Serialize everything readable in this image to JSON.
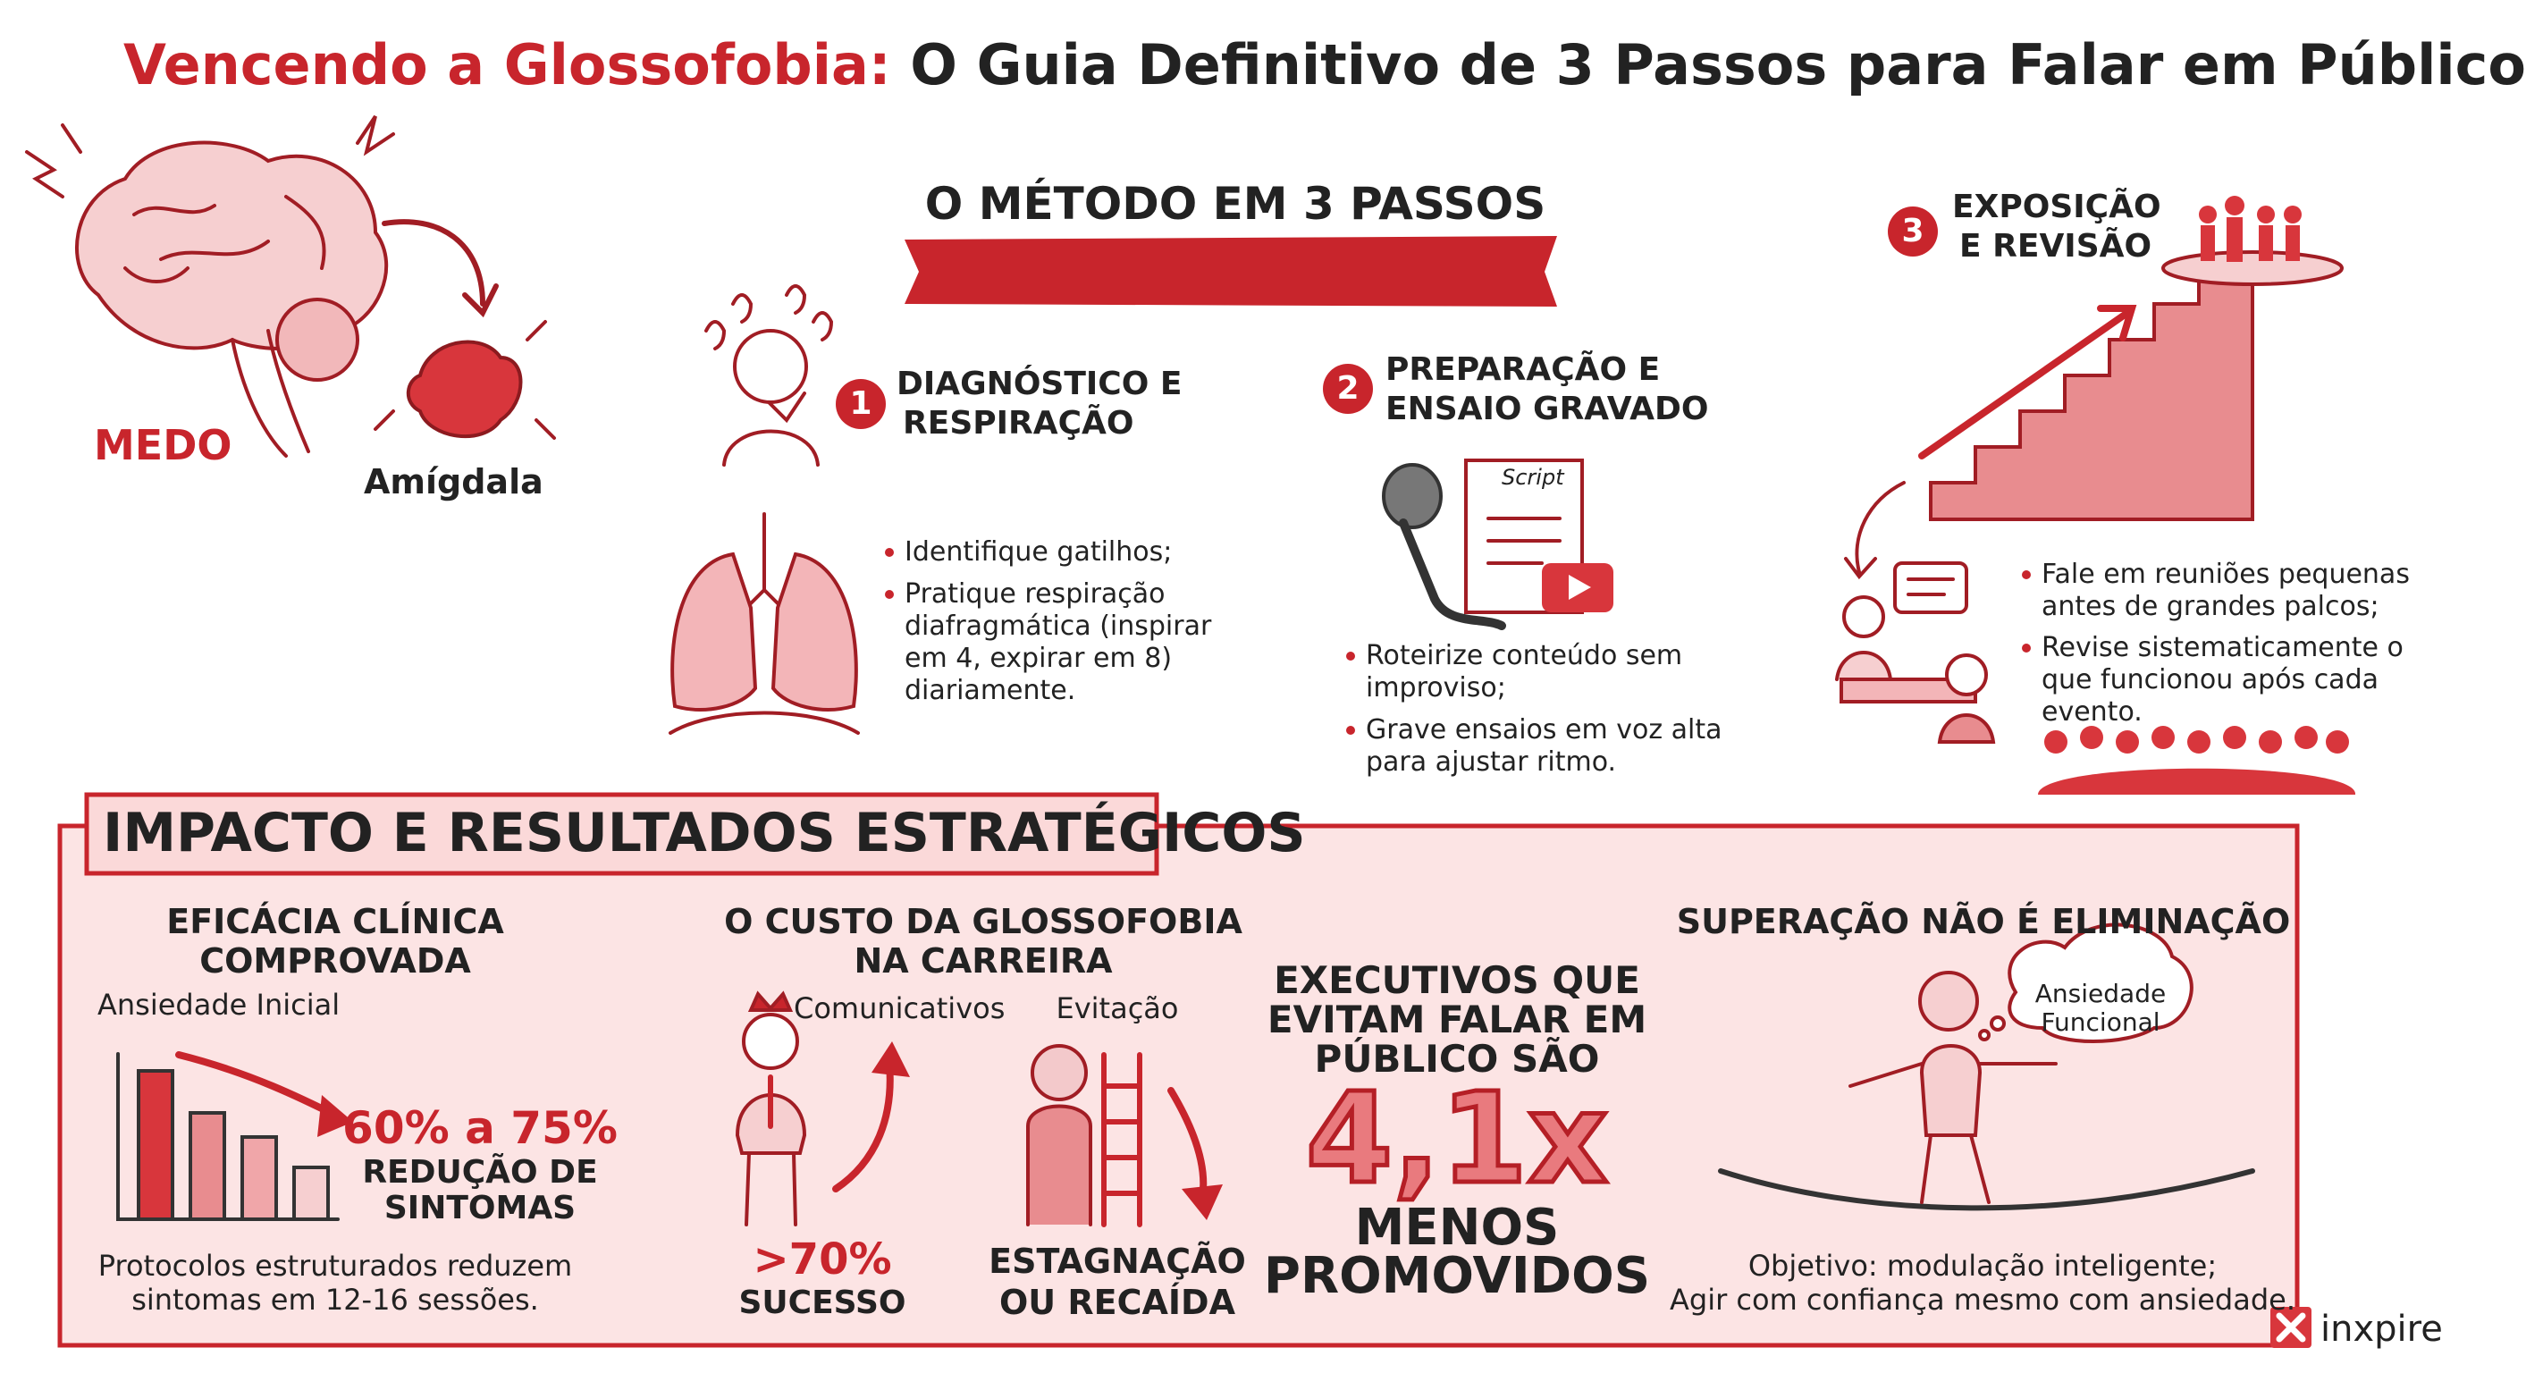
{
  "header": {
    "title_highlight": "Vencendo a Glossofobia:",
    "title_rest": "O Guia Definitivo de 3 Passos para Falar em Público"
  },
  "intro": {
    "fear_label": "MEDO",
    "amygdala_label": "Amígdala"
  },
  "method": {
    "title": "O MÉTODO EM 3 PASSOS",
    "steps": [
      {
        "number": "1",
        "title_lines": [
          "DIAGNÓSTICO E",
          "RESPIRAÇÃO"
        ],
        "bullets": [
          "Identifique gatilhos;",
          "Pratique respiração diafragmática (inspirar em 4, expirar em 8) diariamente."
        ]
      },
      {
        "number": "2",
        "title_lines": [
          "PREPARAÇÃO E",
          "ENSAIO GRAVADO"
        ],
        "script_label": "Script",
        "bullets": [
          "Roteirize conteúdo sem improviso;",
          "Grave ensaios em voz alta para ajustar ritmo."
        ]
      },
      {
        "number": "3",
        "title_lines": [
          "EXPOSIÇÃO",
          "E REVISÃO"
        ],
        "bullets": [
          "Fale em reuniões pequenas antes de grandes palcos;",
          "Revise sistematicamente o que funcionou após cada evento."
        ]
      }
    ]
  },
  "impact": {
    "title": "IMPACTO E RESULTADOS ESTRATÉGICOS",
    "clinical": {
      "title_lines": [
        "EFICÁCIA CLÍNICA",
        "COMPROVADA"
      ],
      "chart_label": "Ansiedade Inicial",
      "stat": "60% a 75%",
      "stat_label_lines": [
        "REDUÇÃO DE",
        "SINTOMAS"
      ],
      "note_lines": [
        "Protocolos estruturados reduzem",
        "sintomas em 12-16 sessões."
      ]
    },
    "cost": {
      "title_lines": [
        "O CUSTO DA GLOSSOFOBIA",
        "NA CARREIRA"
      ],
      "left_label": "Comunicativos",
      "left_stat": ">70%",
      "left_stat_label": "SUCESSO",
      "right_label": "Evitação",
      "right_stat_lines": [
        "ESTAGNAÇÃO",
        "OU RECAÍDA"
      ]
    },
    "executives": {
      "title_lines": [
        "EXECUTIVOS QUE",
        "EVITAM FALAR EM",
        "PÚBLICO SÃO"
      ],
      "stat": "4,1x",
      "stat_label_lines": [
        "MENOS",
        "PROMOVIDOS"
      ]
    },
    "overcoming": {
      "title": "SUPERAÇÃO NÃO É ELIMINAÇÃO",
      "cloud_lines": [
        "Ansiedade",
        "Funcional"
      ],
      "note_lines": [
        "Objetivo: modulação inteligente;",
        "Agir com confiança mesmo com ansiedade."
      ]
    }
  },
  "brand": "inxpire"
}
